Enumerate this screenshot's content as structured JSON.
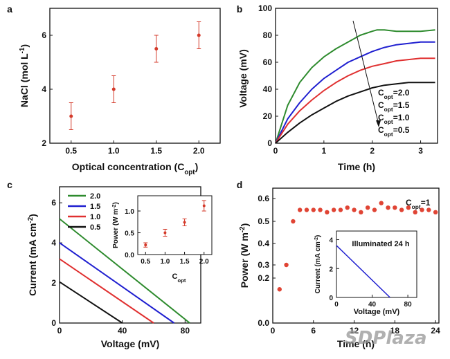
{
  "colors": {
    "green": "#2e8b2e",
    "blue": "#1f1fd0",
    "red": "#e03030",
    "black": "#111111",
    "error_red": "#d43a2a",
    "marker_red": "#e04434"
  },
  "watermark": "SDPlaza",
  "chart_data": [
    {
      "panel": "a",
      "type": "scatter",
      "xlabel": "Optical concentration (C",
      "xlabel_sub": "opt",
      "xlabel_end": ")",
      "ylabel": "NaCl (mol L",
      "ylabel_sup": "-1",
      "ylabel_end": ")",
      "xlim": [
        0.25,
        2.25
      ],
      "ylim": [
        2,
        7
      ],
      "xticks": [
        "0.5",
        "1.0",
        "1.5",
        "2.0"
      ],
      "yticks": [
        "2",
        "4",
        "6"
      ],
      "x": [
        0.5,
        1.0,
        1.5,
        2.0
      ],
      "y": [
        3.0,
        4.0,
        5.5,
        6.0
      ],
      "err": [
        0.5,
        0.5,
        0.5,
        0.5
      ]
    },
    {
      "panel": "b",
      "type": "line",
      "xlabel": "Time (h)",
      "ylabel": "Voltage (mV)",
      "xlim": [
        0,
        3.35
      ],
      "ylim": [
        0,
        100
      ],
      "xticks": [
        "0",
        "1",
        "2",
        "3"
      ],
      "yticks": [
        "0",
        "20",
        "40",
        "60",
        "80",
        "100"
      ],
      "series": [
        {
          "name": "C_opt=2.0",
          "color": "green",
          "x": [
            0,
            0.25,
            0.5,
            0.75,
            1.0,
            1.25,
            1.5,
            1.75,
            2.0,
            2.1,
            2.25,
            2.5,
            2.75,
            3.0,
            3.3
          ],
          "y": [
            0,
            28,
            45,
            56,
            64,
            70,
            75,
            80,
            83,
            84,
            84,
            83,
            83,
            83,
            84
          ]
        },
        {
          "name": "C_opt=1.5",
          "color": "blue",
          "x": [
            0,
            0.25,
            0.5,
            0.75,
            1.0,
            1.25,
            1.5,
            1.75,
            2.0,
            2.25,
            2.5,
            2.75,
            3.0,
            3.3
          ],
          "y": [
            0,
            18,
            30,
            40,
            48,
            54,
            60,
            64,
            68,
            71,
            73,
            74,
            75,
            75
          ]
        },
        {
          "name": "C_opt=1.0",
          "color": "red",
          "x": [
            0,
            0.25,
            0.5,
            0.75,
            1.0,
            1.25,
            1.5,
            1.75,
            2.0,
            2.25,
            2.5,
            2.75,
            3.0,
            3.3
          ],
          "y": [
            0,
            14,
            24,
            32,
            39,
            45,
            50,
            54,
            57,
            59,
            61,
            62,
            63,
            63
          ]
        },
        {
          "name": "C_opt=0.5",
          "color": "black",
          "x": [
            0,
            0.25,
            0.5,
            0.75,
            1.0,
            1.25,
            1.5,
            1.75,
            2.0,
            2.25,
            2.5,
            2.75,
            3.0,
            3.3
          ],
          "y": [
            0,
            8,
            15,
            21,
            26,
            31,
            35,
            38,
            41,
            43,
            44,
            45,
            45,
            45
          ]
        }
      ],
      "legend": [
        "C_opt=2.0",
        "C_opt=1.5",
        "C_opt=1.0",
        "C_opt=0.5"
      ]
    },
    {
      "panel": "c",
      "type": "line",
      "xlabel": "Voltage (mV)",
      "ylabel": "Current (mA cm",
      "ylabel_sup": "-2",
      "ylabel_end": ")",
      "xlim": [
        0,
        90
      ],
      "ylim": [
        0,
        6.8
      ],
      "xticks": [
        "0",
        "40",
        "80"
      ],
      "yticks": [
        "0",
        "2",
        "4",
        "6"
      ],
      "series": [
        {
          "name": "2.0",
          "color": "green",
          "x": [
            0,
            83
          ],
          "y": [
            5.2,
            0
          ]
        },
        {
          "name": "1.5",
          "color": "blue",
          "x": [
            0,
            73
          ],
          "y": [
            4.0,
            0
          ]
        },
        {
          "name": "1.0",
          "color": "red",
          "x": [
            0,
            60
          ],
          "y": [
            3.2,
            0
          ]
        },
        {
          "name": "0.5",
          "color": "black",
          "x": [
            0,
            40
          ],
          "y": [
            2.05,
            0
          ]
        }
      ],
      "legend_position": "top-left",
      "inset": {
        "type": "scatter",
        "xlabel": "C",
        "xlabel_sub": "opt",
        "ylabel": "Power (W m",
        "ylabel_sup": "-2",
        "ylabel_end": ")",
        "xlim": [
          0.3,
          2.2
        ],
        "ylim": [
          0,
          1.35
        ],
        "xticks": [
          "0.5",
          "1.0",
          "1.5",
          "2.0"
        ],
        "yticks": [
          "0.0",
          "0.5",
          "1.0"
        ],
        "x": [
          0.5,
          1.0,
          1.5,
          2.0
        ],
        "y": [
          0.22,
          0.5,
          0.74,
          1.12
        ],
        "err": [
          0.05,
          0.08,
          0.08,
          0.12
        ]
      }
    },
    {
      "panel": "d",
      "type": "scatter",
      "xlabel": "Time (h)",
      "ylabel": "Power (W m",
      "ylabel_sup": "-2",
      "ylabel_end": ")",
      "xlim": [
        0,
        24.5
      ],
      "ylim": [
        0,
        0.66
      ],
      "xticks": [
        "0",
        "6",
        "12",
        "18",
        "24"
      ],
      "yticks": [
        "0.0",
        "0.2",
        "0.3",
        "0.4",
        "0.5",
        "0.6"
      ],
      "annotation": "C",
      "annotation_sub": "opt",
      "annotation_end": "=1",
      "x": [
        1,
        2,
        3,
        4,
        5,
        6,
        7,
        8,
        9,
        10,
        11,
        12,
        13,
        14,
        15,
        16,
        17,
        18,
        19,
        20,
        21,
        22,
        23,
        24
      ],
      "y": [
        0.15,
        0.3,
        0.5,
        0.55,
        0.55,
        0.55,
        0.55,
        0.54,
        0.55,
        0.55,
        0.56,
        0.55,
        0.54,
        0.56,
        0.55,
        0.58,
        0.56,
        0.56,
        0.55,
        0.56,
        0.54,
        0.55,
        0.55,
        0.54
      ],
      "inset": {
        "type": "line",
        "title": "Illuminated 24 h",
        "xlabel": "Voltage (mV)",
        "ylabel": "Current (mA cm",
        "ylabel_sup": "-2",
        "ylabel_end": ")",
        "xlim": [
          0,
          90
        ],
        "ylim": [
          0,
          4.6
        ],
        "xticks": [
          "0",
          "40",
          "80"
        ],
        "yticks": [
          "0",
          "2",
          "4"
        ],
        "x": [
          0,
          60
        ],
        "y": [
          3.6,
          0
        ]
      }
    }
  ]
}
